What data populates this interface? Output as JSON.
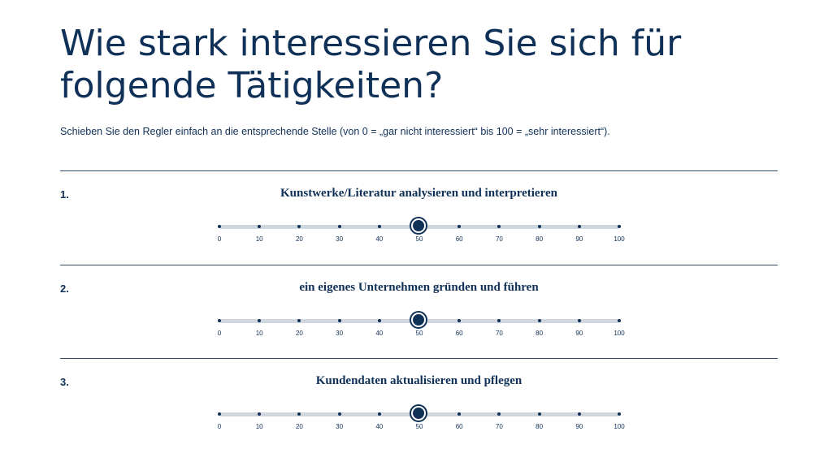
{
  "title": "Wie stark interessieren Sie sich für folgende Tätigkeiten?",
  "instruction": "Schieben Sie den Regler einfach an die entsprechende Stelle (von 0 = „gar nicht interessiert“ bis 100 = „sehr interessiert“).",
  "scale": {
    "min": 0,
    "max": 100,
    "ticks": [
      "0",
      "10",
      "20",
      "30",
      "40",
      "50",
      "60",
      "70",
      "80",
      "90",
      "100"
    ]
  },
  "items": [
    {
      "number": "1.",
      "label": "Kunstwerke/Literatur analysieren und interpretieren",
      "value": 50
    },
    {
      "number": "2.",
      "label": "ein eigenes Unternehmen gründen und führen",
      "value": 50
    },
    {
      "number": "3.",
      "label": "Kundendaten aktualisieren und pflegen",
      "value": 50
    }
  ],
  "colors": {
    "text": "#0f3057",
    "track": "#cfd6de",
    "divider": "#2e4a6b",
    "handle": "#0f3057"
  }
}
